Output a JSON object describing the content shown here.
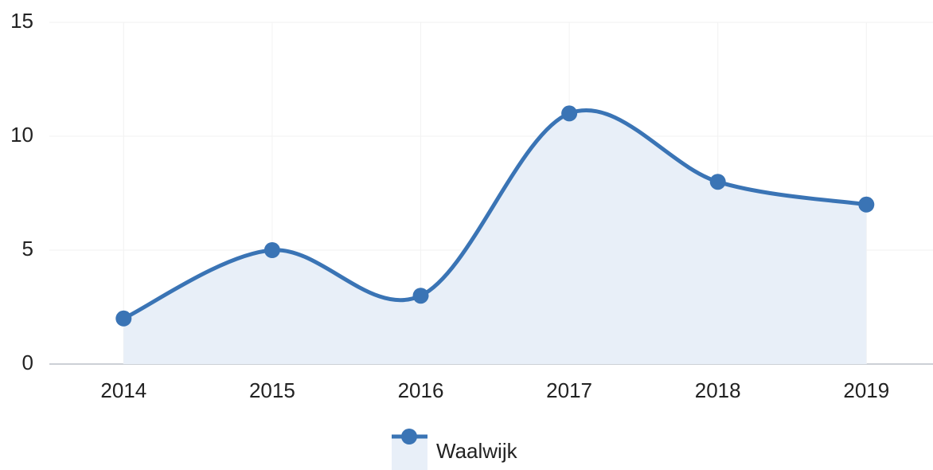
{
  "chart_data": {
    "type": "area",
    "categories": [
      "2014",
      "2015",
      "2016",
      "2017",
      "2018",
      "2019"
    ],
    "series": [
      {
        "name": "Waalwijk",
        "color": "#3a74b5",
        "fill": "#e8eff8",
        "values": [
          2,
          5,
          3,
          11,
          8,
          7
        ]
      }
    ],
    "ylim": [
      0,
      15
    ],
    "yticks": [
      0,
      5,
      10,
      15
    ],
    "grid": true,
    "legend": "bottom"
  }
}
